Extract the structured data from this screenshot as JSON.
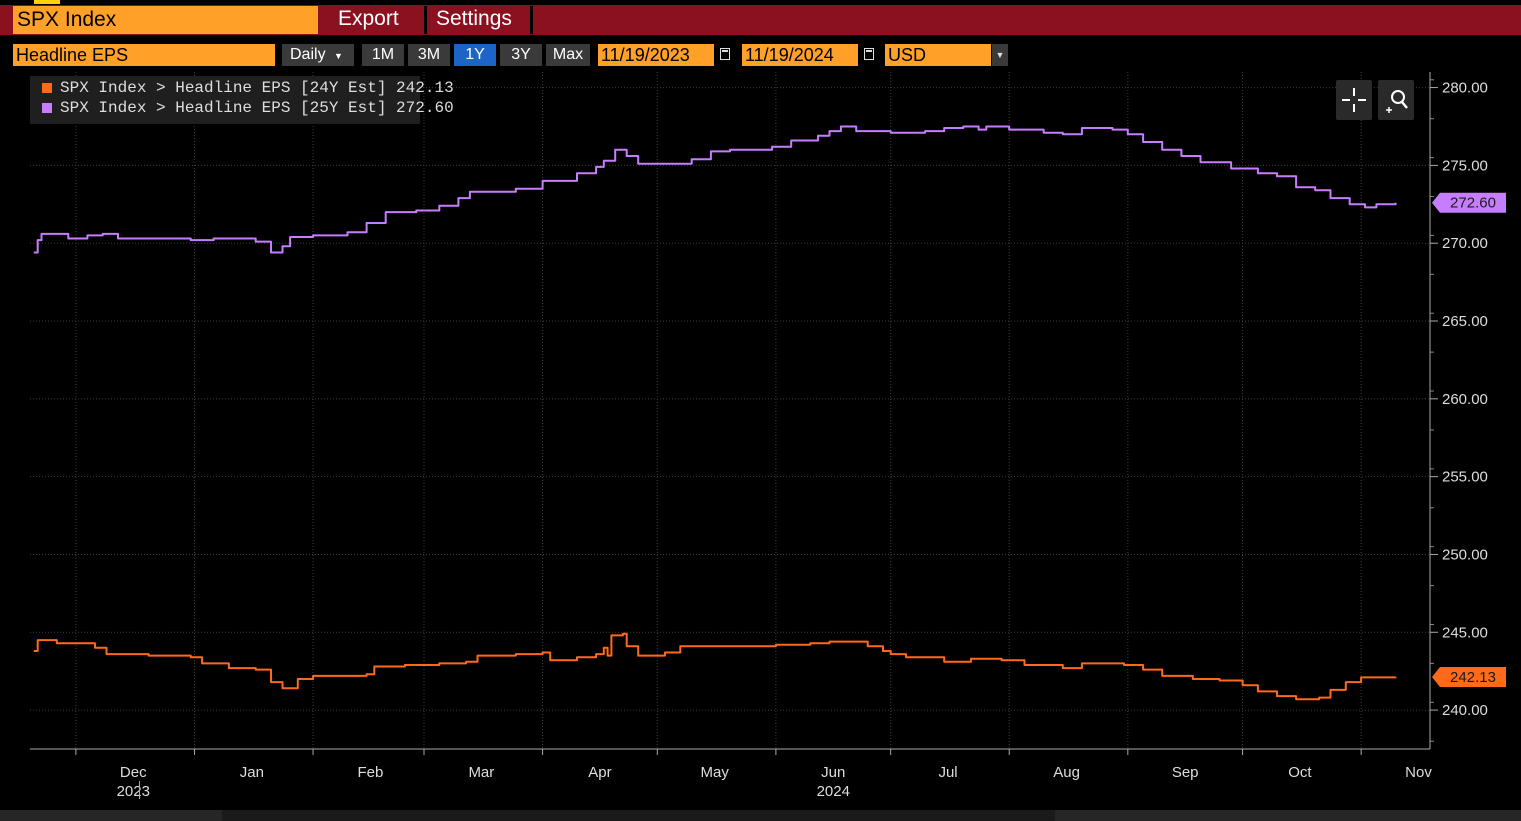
{
  "header": {
    "security": "SPX Index",
    "export_label": "Export",
    "settings_label": "Settings"
  },
  "toolbar": {
    "field": "Headline EPS",
    "frequency": "Daily",
    "ranges": [
      "1M",
      "3M",
      "1Y",
      "3Y",
      "Max"
    ],
    "active_range": "1Y",
    "start_date": "11/19/2023",
    "end_date": "11/19/2024",
    "currency": "USD"
  },
  "legend": {
    "items": [
      {
        "label": "SPX Index > Headline EPS [24Y Est] 242.13",
        "color": "#ff6a1a"
      },
      {
        "label": "SPX Index > Headline EPS [25Y Est] 272.60",
        "color": "#c77dff"
      }
    ]
  },
  "colors": {
    "orange": "#ffa028",
    "menu_red": "#8b1020",
    "active_blue": "#1c64c8",
    "series_24": "#ff6a1a",
    "series_25": "#c77dff"
  },
  "icons": [
    "crosshair-icon",
    "zoom-icon",
    "calendar-icon",
    "dropdown-icon"
  ],
  "chart_data": {
    "type": "line",
    "title": "",
    "xlabel": "",
    "ylabel": "",
    "x_range": [
      "2023-11-19",
      "2024-11-19"
    ],
    "ylim": [
      237.5,
      281
    ],
    "y_ticks": [
      "280.00",
      "275.00",
      "270.00",
      "265.00",
      "260.00",
      "255.00",
      "250.00",
      "245.00",
      "240.00"
    ],
    "x_ticks": [
      {
        "date": "2023-12-01",
        "label": "Dec"
      },
      {
        "date": "2024-01-01",
        "label": "Jan"
      },
      {
        "date": "2024-02-01",
        "label": "Feb"
      },
      {
        "date": "2024-03-01",
        "label": "Mar"
      },
      {
        "date": "2024-04-01",
        "label": "Apr"
      },
      {
        "date": "2024-05-01",
        "label": "May"
      },
      {
        "date": "2024-06-01",
        "label": "Jun"
      },
      {
        "date": "2024-07-01",
        "label": "Jul"
      },
      {
        "date": "2024-08-01",
        "label": "Aug"
      },
      {
        "date": "2024-09-01",
        "label": "Sep"
      },
      {
        "date": "2024-10-01",
        "label": "Oct"
      },
      {
        "date": "2024-11-01",
        "label": "Nov"
      }
    ],
    "year_labels": [
      {
        "date": "2023-12-01",
        "label": "2023"
      },
      {
        "date": "2024-06-01",
        "label": "2024"
      }
    ],
    "grid": true,
    "legend_position": "top-left",
    "series": [
      {
        "name": "SPX Index > Headline EPS [24Y Est]",
        "color": "#ff6a1a",
        "last_value": "242.13",
        "points": [
          [
            "2023-11-20",
            243.8
          ],
          [
            "2023-11-21",
            244.5
          ],
          [
            "2023-11-25",
            244.5
          ],
          [
            "2023-11-26",
            244.3
          ],
          [
            "2023-12-01",
            244.3
          ],
          [
            "2023-12-06",
            244.0
          ],
          [
            "2023-12-09",
            243.6
          ],
          [
            "2023-12-20",
            243.5
          ],
          [
            "2023-12-31",
            243.4
          ],
          [
            "2024-01-03",
            243.0
          ],
          [
            "2024-01-10",
            242.7
          ],
          [
            "2024-01-17",
            242.6
          ],
          [
            "2024-01-21",
            241.8
          ],
          [
            "2024-01-24",
            241.4
          ],
          [
            "2024-01-28",
            242.0
          ],
          [
            "2024-02-01",
            242.2
          ],
          [
            "2024-02-15",
            242.3
          ],
          [
            "2024-02-17",
            242.8
          ],
          [
            "2024-02-25",
            242.9
          ],
          [
            "2024-03-05",
            243.0
          ],
          [
            "2024-03-12",
            243.1
          ],
          [
            "2024-03-15",
            243.5
          ],
          [
            "2024-03-25",
            243.6
          ],
          [
            "2024-04-01",
            243.7
          ],
          [
            "2024-04-03",
            243.2
          ],
          [
            "2024-04-10",
            243.4
          ],
          [
            "2024-04-15",
            243.6
          ],
          [
            "2024-04-17",
            244.0
          ],
          [
            "2024-04-18",
            243.5
          ],
          [
            "2024-04-19",
            244.8
          ],
          [
            "2024-04-22",
            244.9
          ],
          [
            "2024-04-23",
            244.1
          ],
          [
            "2024-04-26",
            243.5
          ],
          [
            "2024-05-03",
            243.7
          ],
          [
            "2024-05-07",
            244.1
          ],
          [
            "2024-05-20",
            244.1
          ],
          [
            "2024-06-01",
            244.2
          ],
          [
            "2024-06-10",
            244.3
          ],
          [
            "2024-06-15",
            244.4
          ],
          [
            "2024-06-25",
            244.1
          ],
          [
            "2024-06-29",
            243.8
          ],
          [
            "2024-07-01",
            243.6
          ],
          [
            "2024-07-05",
            243.4
          ],
          [
            "2024-07-15",
            243.1
          ],
          [
            "2024-07-22",
            243.3
          ],
          [
            "2024-07-30",
            243.2
          ],
          [
            "2024-08-05",
            242.9
          ],
          [
            "2024-08-15",
            242.7
          ],
          [
            "2024-08-20",
            243.0
          ],
          [
            "2024-08-31",
            242.9
          ],
          [
            "2024-09-05",
            242.6
          ],
          [
            "2024-09-10",
            242.2
          ],
          [
            "2024-09-18",
            242.0
          ],
          [
            "2024-09-25",
            241.9
          ],
          [
            "2024-10-01",
            241.6
          ],
          [
            "2024-10-05",
            241.2
          ],
          [
            "2024-10-10",
            240.9
          ],
          [
            "2024-10-15",
            240.7
          ],
          [
            "2024-10-21",
            240.8
          ],
          [
            "2024-10-24",
            241.3
          ],
          [
            "2024-10-28",
            241.8
          ],
          [
            "2024-11-01",
            242.1
          ],
          [
            "2024-11-05",
            242.1
          ],
          [
            "2024-11-10",
            242.13
          ]
        ]
      },
      {
        "name": "SPX Index > Headline EPS [25Y Est]",
        "color": "#c77dff",
        "last_value": "272.60",
        "points": [
          [
            "2023-11-20",
            269.4
          ],
          [
            "2023-11-21",
            270.2
          ],
          [
            "2023-11-22",
            270.6
          ],
          [
            "2023-11-29",
            270.3
          ],
          [
            "2023-12-04",
            270.5
          ],
          [
            "2023-12-08",
            270.6
          ],
          [
            "2023-12-12",
            270.3
          ],
          [
            "2023-12-22",
            270.3
          ],
          [
            "2023-12-31",
            270.2
          ],
          [
            "2024-01-06",
            270.3
          ],
          [
            "2024-01-17",
            270.1
          ],
          [
            "2024-01-21",
            269.4
          ],
          [
            "2024-01-24",
            269.8
          ],
          [
            "2024-01-26",
            270.4
          ],
          [
            "2024-02-01",
            270.5
          ],
          [
            "2024-02-10",
            270.7
          ],
          [
            "2024-02-15",
            271.3
          ],
          [
            "2024-02-20",
            272.0
          ],
          [
            "2024-02-28",
            272.1
          ],
          [
            "2024-03-05",
            272.4
          ],
          [
            "2024-03-10",
            272.9
          ],
          [
            "2024-03-13",
            273.3
          ],
          [
            "2024-03-25",
            273.5
          ],
          [
            "2024-04-01",
            274.0
          ],
          [
            "2024-04-10",
            274.5
          ],
          [
            "2024-04-15",
            274.9
          ],
          [
            "2024-04-17",
            275.3
          ],
          [
            "2024-04-20",
            276.0
          ],
          [
            "2024-04-23",
            275.6
          ],
          [
            "2024-04-26",
            275.1
          ],
          [
            "2024-05-10",
            275.4
          ],
          [
            "2024-05-15",
            275.9
          ],
          [
            "2024-05-20",
            276.0
          ],
          [
            "2024-05-31",
            276.2
          ],
          [
            "2024-06-05",
            276.6
          ],
          [
            "2024-06-12",
            276.9
          ],
          [
            "2024-06-15",
            277.2
          ],
          [
            "2024-06-18",
            277.5
          ],
          [
            "2024-06-22",
            277.2
          ],
          [
            "2024-07-01",
            277.1
          ],
          [
            "2024-07-10",
            277.2
          ],
          [
            "2024-07-15",
            277.4
          ],
          [
            "2024-07-20",
            277.5
          ],
          [
            "2024-07-24",
            277.3
          ],
          [
            "2024-07-26",
            277.5
          ],
          [
            "2024-08-01",
            277.3
          ],
          [
            "2024-08-10",
            277.1
          ],
          [
            "2024-08-15",
            277.0
          ],
          [
            "2024-08-20",
            277.4
          ],
          [
            "2024-08-28",
            277.3
          ],
          [
            "2024-09-01",
            277.0
          ],
          [
            "2024-09-05",
            276.5
          ],
          [
            "2024-09-10",
            276.0
          ],
          [
            "2024-09-15",
            275.6
          ],
          [
            "2024-09-20",
            275.2
          ],
          [
            "2024-09-28",
            274.8
          ],
          [
            "2024-10-05",
            274.5
          ],
          [
            "2024-10-10",
            274.3
          ],
          [
            "2024-10-15",
            273.6
          ],
          [
            "2024-10-20",
            273.4
          ],
          [
            "2024-10-24",
            272.9
          ],
          [
            "2024-10-29",
            272.5
          ],
          [
            "2024-11-02",
            272.3
          ],
          [
            "2024-11-05",
            272.5
          ],
          [
            "2024-11-10",
            272.6
          ]
        ]
      }
    ]
  }
}
